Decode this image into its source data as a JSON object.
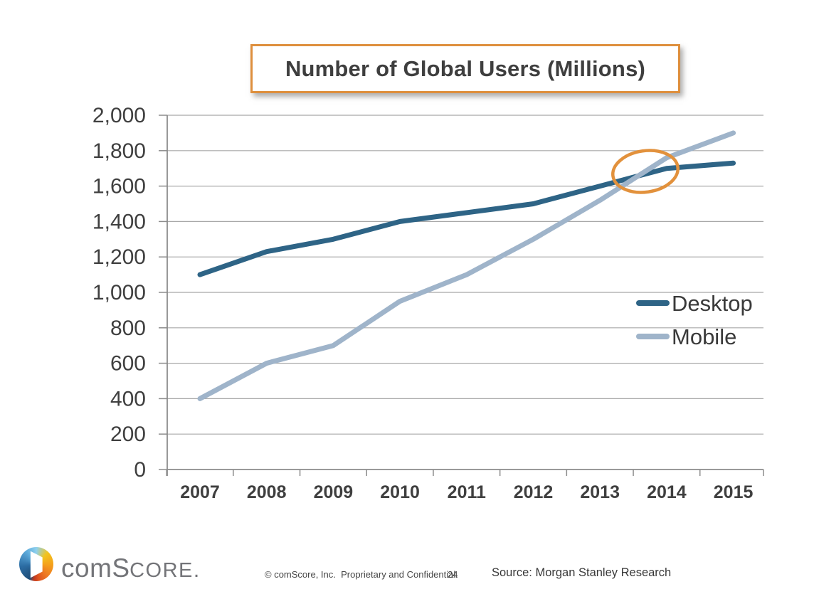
{
  "chart_data": {
    "type": "line",
    "title": "Number of Global Users (Millions)",
    "categories": [
      "2007",
      "2008",
      "2009",
      "2010",
      "2011",
      "2012",
      "2013",
      "2014",
      "2015"
    ],
    "series": [
      {
        "name": "Desktop",
        "color": "#2E6486",
        "values": [
          1100,
          1230,
          1300,
          1400,
          1450,
          1500,
          1600,
          1700,
          1730
        ]
      },
      {
        "name": "Mobile",
        "color": "#9FB4CA",
        "values": [
          400,
          600,
          700,
          950,
          1100,
          1300,
          1520,
          1760,
          1900
        ]
      }
    ],
    "xlabel": "",
    "ylabel": "",
    "ylim": [
      0,
      2000
    ],
    "ytick_step": 200,
    "grid": true,
    "legend_position": "right-middle",
    "annotation": {
      "shape": "ellipse",
      "meaning": "desktop-mobile-crossover-highlight",
      "color": "#E2913C"
    }
  },
  "colors": {
    "accent_orange": "#DE8F3D",
    "gridline": "#A8A8A8",
    "axis": "#8C8C8C",
    "axis_label": "#3F3F3F",
    "legend_text": "#3A3A3A"
  },
  "footer": {
    "brand_com": "com",
    "brand_s": "S",
    "brand_core": "CORE",
    "brand_dot": ".",
    "copyright": "© comScore, Inc.  Proprietary and Confidential.",
    "page_number": "24",
    "source": "Source: Morgan Stanley Research"
  }
}
